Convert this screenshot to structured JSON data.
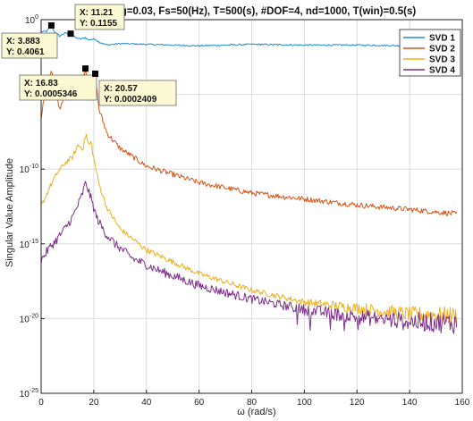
{
  "chart_data": {
    "type": "line",
    "title": "g=0.03, Fs=50(Hz), T=500(s), #DOF=4, nd=1000, T(win)=0.5(s)",
    "xlabel": "ω (rad/s)",
    "ylabel": "Singular Value Amplitude",
    "xlim": [
      0,
      160
    ],
    "ylim_log10": [
      -25,
      0
    ],
    "y_scale": "log",
    "xticks": [
      0,
      20,
      40,
      60,
      80,
      100,
      120,
      140,
      160
    ],
    "xtick_labels": [
      "0",
      "20",
      "40",
      "60",
      "80",
      "100",
      "120",
      "140",
      "160"
    ],
    "yticks_log10": [
      0,
      -5,
      -10,
      -15,
      -20,
      -25
    ],
    "ytick_labels": [
      {
        "base": "10",
        "exp": "0"
      },
      {
        "base": "10",
        "exp": "-5"
      },
      {
        "base": "10",
        "exp": "-10"
      },
      {
        "base": "10",
        "exp": "-15"
      },
      {
        "base": "10",
        "exp": "-20"
      },
      {
        "base": "10",
        "exp": "-25"
      }
    ],
    "grid": true,
    "legend_position": "top-right",
    "series": [
      {
        "name": "SVD 1",
        "color": "#1f8ec9",
        "x": [
          0,
          2,
          3.883,
          5,
          7,
          9,
          11.21,
          13,
          15,
          16.83,
          18,
          20.57,
          22,
          25,
          30,
          40,
          60,
          80,
          100,
          120,
          140,
          158
        ],
        "log10_y": [
          -0.8,
          -0.8,
          -0.39,
          -0.8,
          -1.1,
          -0.9,
          -0.94,
          -1.2,
          -1.3,
          -1.2,
          -1.35,
          -1.3,
          -1.5,
          -1.7,
          -1.6,
          -1.65,
          -1.75,
          -1.65,
          -1.7,
          -1.7,
          -1.75,
          -1.75
        ]
      },
      {
        "name": "SVD 2",
        "color": "#d95319",
        "x": [
          0,
          2,
          3.883,
          5,
          7,
          9,
          11.21,
          13,
          15,
          16.83,
          18.5,
          20.57,
          22,
          25,
          30,
          40,
          60,
          80,
          100,
          120,
          140,
          158
        ],
        "log10_y": [
          -6.5,
          -4.2,
          -3.4,
          -4.4,
          -6.0,
          -5.0,
          -4.0,
          -5.0,
          -4.6,
          -3.27,
          -4.5,
          -3.62,
          -6.0,
          -7.6,
          -8.6,
          -9.8,
          -10.9,
          -11.6,
          -12.0,
          -12.4,
          -12.7,
          -13.0
        ]
      },
      {
        "name": "SVD 3",
        "color": "#edb120",
        "x": [
          0,
          3,
          6,
          9,
          12,
          14,
          16,
          17,
          18,
          19,
          20,
          22,
          25,
          30,
          40,
          60,
          80,
          100,
          120,
          140,
          158
        ],
        "log10_y": [
          -12.5,
          -11.3,
          -10.3,
          -9.6,
          -9.2,
          -8.4,
          -8.6,
          -7.6,
          -8.4,
          -8.2,
          -9.3,
          -11.0,
          -12.6,
          -14.0,
          -15.4,
          -17.0,
          -18.1,
          -18.9,
          -19.3,
          -19.7,
          -19.8
        ]
      },
      {
        "name": "SVD 4",
        "color": "#7e2f8e",
        "x": [
          0,
          3,
          6,
          9,
          12,
          15,
          17,
          19,
          21,
          24,
          28,
          35,
          45,
          60,
          80,
          100,
          120,
          140,
          158
        ],
        "log10_y": [
          -16.1,
          -15.3,
          -14.7,
          -14.0,
          -13.2,
          -12.0,
          -10.9,
          -12.0,
          -13.2,
          -14.2,
          -15.0,
          -16.0,
          -16.8,
          -17.8,
          -18.7,
          -19.4,
          -19.9,
          -20.2,
          -20.3
        ]
      }
    ],
    "datatips": [
      {
        "x_label": "X: 3.883",
        "y_label": "Y: 0.4061",
        "x": 3.883,
        "y": 0.4061
      },
      {
        "x_label": "X: 11.21",
        "y_label": "Y: 0.1155",
        "x": 11.21,
        "y": 0.1155
      },
      {
        "x_label": "X: 16.83",
        "y_label": "Y: 0.0005346",
        "x": 16.83,
        "y": 0.0005346
      },
      {
        "x_label": "X: 20.57",
        "y_label": "Y: 0.0002409",
        "x": 20.57,
        "y": 0.0002409
      }
    ]
  }
}
